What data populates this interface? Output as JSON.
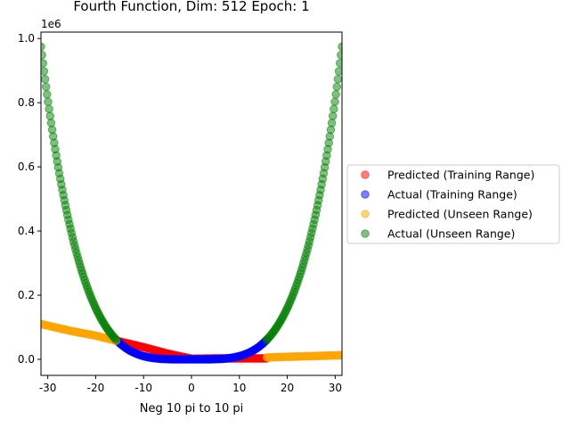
{
  "chart_data": {
    "type": "scatter",
    "title": "Fourth Function, Dim: 512 Epoch: 1",
    "xlabel": "Neg 10 pi to 10 pi",
    "ylabel": "",
    "y_offset_label": "1e6",
    "xlim": [
      -31.42,
      31.42
    ],
    "ylim": [
      -0.05,
      1.02
    ],
    "xticks": [
      -30,
      -20,
      -10,
      0,
      10,
      20,
      30
    ],
    "yticks": [
      0.0,
      0.2,
      0.4,
      0.6,
      0.8,
      1.0
    ],
    "ytick_labels": [
      "0.0",
      "0.2",
      "0.4",
      "0.6",
      "0.8",
      "1.0"
    ],
    "grid": false,
    "legend_position": "outside-right",
    "point_count_per_range": 150,
    "series": [
      {
        "name": "Predicted (Training Range)",
        "color": "#ff0000",
        "x_range": [
          -15.71,
          15.71
        ],
        "x_sample": [
          -15.71,
          -10,
          -5,
          0,
          5,
          10,
          15.71
        ],
        "y_sample": [
          0.058,
          0.038,
          0.018,
          0.002,
          0.003,
          0.003,
          0.003
        ]
      },
      {
        "name": "Actual (Training Range)",
        "color": "#0000ff",
        "x_range": [
          -15.71,
          15.71
        ],
        "formula": "y = x^4 / 1e6",
        "x_sample": [
          -15.71,
          -10,
          -5,
          0,
          5,
          10,
          15.71
        ],
        "y_sample": [
          0.0609,
          0.01,
          0.0006,
          0.0,
          0.0006,
          0.01,
          0.0609
        ]
      },
      {
        "name": "Predicted (Unseen Range)",
        "color": "#ffa500",
        "x_ranges": [
          [
            -31.42,
            -15.71
          ],
          [
            15.71,
            31.42
          ]
        ],
        "x_sample": [
          -31.42,
          -25,
          -20,
          -15.71,
          15.71,
          20,
          25,
          31.42
        ],
        "y_sample": [
          0.11,
          0.088,
          0.074,
          0.058,
          0.006,
          0.008,
          0.01,
          0.013
        ]
      },
      {
        "name": "Actual (Unseen Range)",
        "color": "#008000",
        "x_ranges": [
          [
            -31.42,
            -15.71
          ],
          [
            15.71,
            31.42
          ]
        ],
        "formula": "y = x^4 / 1e6",
        "x_sample": [
          -31.42,
          -25,
          -20,
          -15.71,
          15.71,
          20,
          25,
          31.42
        ],
        "y_sample": [
          0.9741,
          0.3906,
          0.16,
          0.0609,
          0.0609,
          0.16,
          0.3906,
          0.9741
        ]
      }
    ]
  }
}
